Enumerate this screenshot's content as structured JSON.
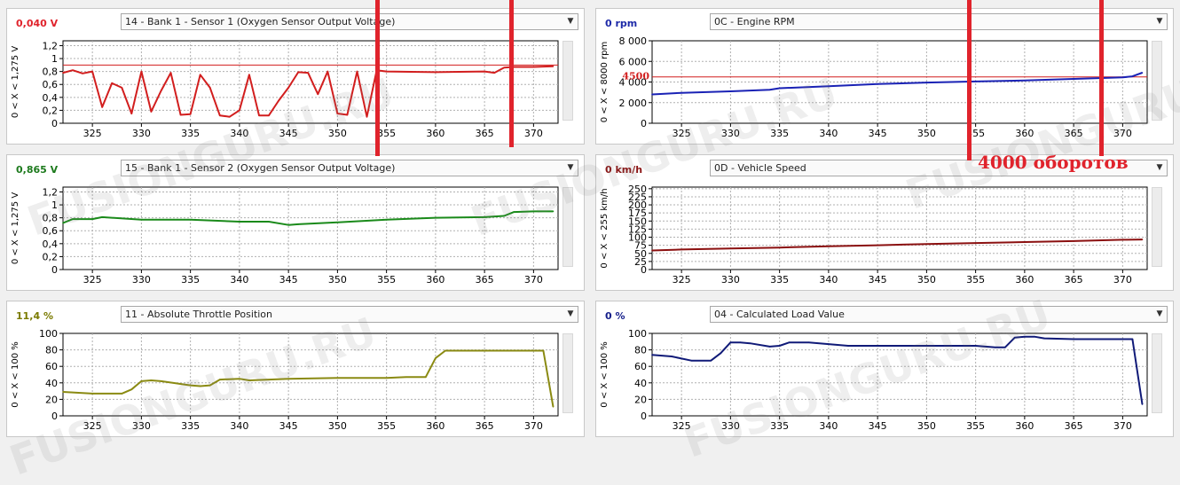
{
  "panels": [
    {
      "value": "0,040 V",
      "value_color": "#e0232c",
      "sensor": "14 - Bank 1 - Sensor 1 (Oxygen Sensor Output Voltage)",
      "range_label": "0  < X <  1,275  V",
      "line_color": "#d21e1e",
      "chart_data": {
        "type": "line",
        "x": [
          322,
          323,
          324,
          325,
          326,
          327,
          328,
          329,
          330,
          331,
          332,
          333,
          334,
          335,
          336,
          337,
          338,
          339,
          340,
          341,
          342,
          343,
          344,
          345,
          346,
          347,
          348,
          349,
          350,
          351,
          352,
          353,
          354,
          355,
          360,
          365,
          366,
          367,
          368,
          370,
          372
        ],
        "y": [
          0.78,
          0.82,
          0.77,
          0.8,
          0.25,
          0.62,
          0.55,
          0.15,
          0.8,
          0.18,
          0.5,
          0.78,
          0.13,
          0.14,
          0.75,
          0.55,
          0.12,
          0.1,
          0.2,
          0.75,
          0.12,
          0.12,
          0.35,
          0.55,
          0.79,
          0.78,
          0.45,
          0.8,
          0.15,
          0.13,
          0.8,
          0.1,
          0.82,
          0.8,
          0.79,
          0.8,
          0.78,
          0.86,
          0.87,
          0.87,
          0.88
        ],
        "ylim": [
          0,
          1.275
        ],
        "xlim": [
          322,
          372.5
        ],
        "yticks": [
          "0",
          "0,2",
          "0,4",
          "0,6",
          "0,8",
          "1",
          "1,2"
        ],
        "ytick_values": [
          0,
          0.2,
          0.4,
          0.6,
          0.8,
          1,
          1.2
        ],
        "xticks": [
          "325",
          "330",
          "335",
          "340",
          "345",
          "350",
          "355",
          "360",
          "365",
          "370"
        ],
        "ref_line": 0.9,
        "ref_color": "#d21e1e",
        "ref_label": ""
      }
    },
    {
      "value": "0 rpm",
      "value_color": "#1e2aa8",
      "sensor": "0C - Engine RPM",
      "range_label": "0  < X <  8000  rpm",
      "line_color": "#1a22b5",
      "chart_data": {
        "type": "line",
        "x": [
          322,
          325,
          330,
          334,
          335,
          340,
          345,
          350,
          355,
          360,
          365,
          370,
          371,
          372
        ],
        "y": [
          2800,
          2950,
          3100,
          3250,
          3400,
          3600,
          3800,
          3950,
          4050,
          4150,
          4300,
          4450,
          4550,
          4900
        ],
        "ylim": [
          0,
          8000
        ],
        "xlim": [
          322,
          372.5
        ],
        "yticks": [
          "0",
          "2 000",
          "4 000",
          "6 000",
          "8 000"
        ],
        "ytick_values": [
          0,
          2000,
          4000,
          6000,
          8000
        ],
        "xticks": [
          "325",
          "330",
          "335",
          "340",
          "345",
          "350",
          "355",
          "360",
          "365",
          "370"
        ],
        "ref_line": 4500,
        "ref_color": "#d21e1e",
        "ref_label": "4500"
      }
    },
    {
      "value": "0,865 V",
      "value_color": "#1d7a1d",
      "sensor": "15 - Bank 1 - Sensor 2 (Oxygen Sensor Output Voltage)",
      "range_label": "0  < X <  1,275  V",
      "line_color": "#1a8a1a",
      "chart_data": {
        "type": "line",
        "x": [
          322,
          323,
          325,
          326,
          330,
          335,
          340,
          343,
          345,
          346,
          350,
          355,
          360,
          365,
          367,
          368,
          370,
          372
        ],
        "y": [
          0.72,
          0.78,
          0.78,
          0.81,
          0.77,
          0.77,
          0.74,
          0.74,
          0.69,
          0.7,
          0.73,
          0.77,
          0.8,
          0.81,
          0.83,
          0.89,
          0.9,
          0.9
        ],
        "ylim": [
          0,
          1.275
        ],
        "xlim": [
          322,
          372.5
        ],
        "yticks": [
          "0",
          "0,2",
          "0,4",
          "0,6",
          "0,8",
          "1",
          "1,2"
        ],
        "ytick_values": [
          0,
          0.2,
          0.4,
          0.6,
          0.8,
          1,
          1.2
        ],
        "xticks": [
          "325",
          "330",
          "335",
          "340",
          "345",
          "350",
          "355",
          "360",
          "365",
          "370"
        ],
        "ref_line": null,
        "ref_color": "",
        "ref_label": ""
      }
    },
    {
      "value": "0 km/h",
      "value_color": "#8a1414",
      "sensor": "0D - Vehicle Speed",
      "range_label": "0  < X <  255  km/h",
      "line_color": "#8b1010",
      "chart_data": {
        "type": "line",
        "x": [
          322,
          325,
          330,
          335,
          340,
          345,
          350,
          355,
          360,
          365,
          370,
          372
        ],
        "y": [
          59,
          62,
          65,
          68,
          72,
          75,
          79,
          82,
          85,
          88,
          92,
          93
        ],
        "ylim": [
          0,
          255
        ],
        "xlim": [
          322,
          372.5
        ],
        "yticks": [
          "0",
          "25",
          "50",
          "75",
          "100",
          "125",
          "150",
          "175",
          "200",
          "225",
          "250"
        ],
        "ytick_values": [
          0,
          25,
          50,
          75,
          100,
          125,
          150,
          175,
          200,
          225,
          250
        ],
        "xticks": [
          "325",
          "330",
          "335",
          "340",
          "345",
          "350",
          "355",
          "360",
          "365",
          "370"
        ],
        "ref_line": null,
        "ref_color": "",
        "ref_label": ""
      }
    },
    {
      "value": "11,4 %",
      "value_color": "#7a7a00",
      "sensor": "11 - Absolute Throttle Position",
      "range_label": "0  < X <  100  %",
      "line_color": "#8a8a12",
      "chart_data": {
        "type": "line",
        "x": [
          322,
          325,
          328,
          329,
          330,
          331,
          332,
          335,
          336,
          337,
          338,
          340,
          341,
          345,
          350,
          355,
          357,
          359,
          360,
          361,
          365,
          370,
          371,
          372
        ],
        "y": [
          29,
          27,
          27,
          32,
          42,
          43,
          42,
          37,
          36,
          37,
          44,
          45,
          43,
          45,
          46,
          46,
          47,
          47,
          70,
          79,
          79,
          79,
          79,
          11
        ],
        "ylim": [
          0,
          100
        ],
        "xlim": [
          322,
          372.5
        ],
        "yticks": [
          "0",
          "20",
          "40",
          "60",
          "80",
          "100"
        ],
        "ytick_values": [
          0,
          20,
          40,
          60,
          80,
          100
        ],
        "xticks": [
          "325",
          "330",
          "335",
          "340",
          "345",
          "350",
          "355",
          "360",
          "365",
          "370"
        ],
        "ref_line": null,
        "ref_color": "",
        "ref_label": ""
      }
    },
    {
      "value": "0 %",
      "value_color": "#141e8a",
      "sensor": "04 - Calculated Load Value",
      "range_label": "0  < X <  100  %",
      "line_color": "#101a78",
      "chart_data": {
        "type": "line",
        "x": [
          322,
          324,
          326,
          328,
          329,
          330,
          331,
          332,
          334,
          335,
          336,
          337,
          338,
          340,
          342,
          345,
          350,
          355,
          357,
          358,
          359,
          360,
          361,
          362,
          365,
          370,
          371,
          372
        ],
        "y": [
          74,
          72,
          67,
          67,
          76,
          89,
          89,
          88,
          84,
          85,
          89,
          89,
          89,
          87,
          85,
          85,
          85,
          85,
          83,
          83,
          95,
          96,
          96,
          94,
          93,
          93,
          93,
          14
        ],
        "ylim": [
          0,
          100
        ],
        "xlim": [
          322,
          372.5
        ],
        "yticks": [
          "0",
          "20",
          "40",
          "60",
          "80",
          "100"
        ],
        "ytick_values": [
          0,
          20,
          40,
          60,
          80,
          100
        ],
        "xticks": [
          "325",
          "330",
          "335",
          "340",
          "345",
          "350",
          "355",
          "360",
          "365",
          "370"
        ],
        "ref_line": null,
        "ref_color": "",
        "ref_label": ""
      }
    }
  ],
  "annotation": "4000 оборотов",
  "watermark": "FUSIONGURU.RU",
  "marker_color": "#e0232c"
}
